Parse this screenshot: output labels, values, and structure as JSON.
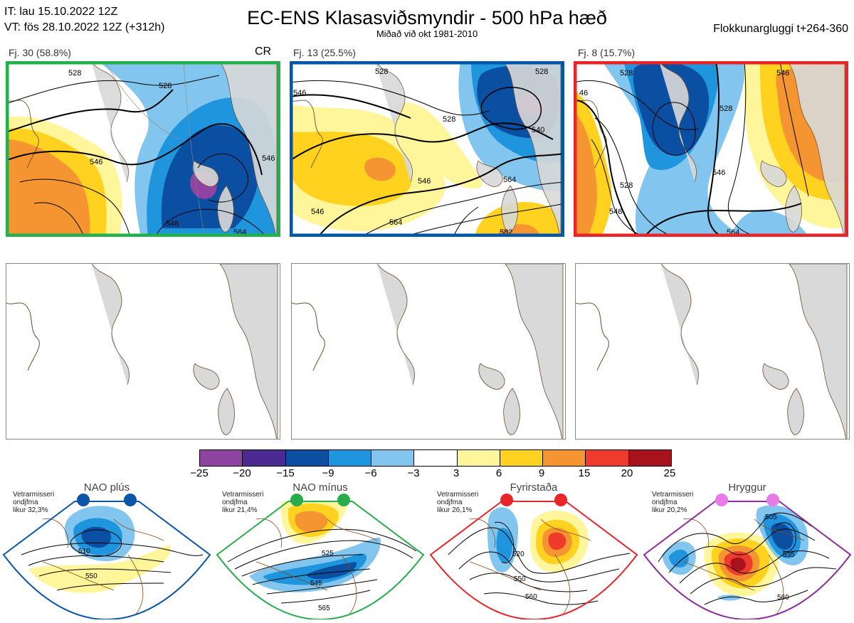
{
  "header": {
    "init_line": "IT: lau 15.10.2022 12Z",
    "valid_line": "VT: fös 28.10.2022 12Z  (+312h)",
    "title": "EC-ENS Klasasviðsmyndir - 500 hPa hæð",
    "subtitle": "Miðað við okt 1981-2010",
    "window": "Flokkunargluggi t+264-360"
  },
  "clusters": [
    {
      "label": "Fj. 30 (58.8%)",
      "border_color": "#22b14c",
      "tag": "CR",
      "contour_labels": [
        "528",
        "546",
        "546",
        "546",
        "564",
        "528"
      ]
    },
    {
      "label": "Fj. 13 (25.5%)",
      "border_color": "#0057a8",
      "tag": "",
      "contour_labels": [
        "528",
        "546",
        "546",
        "564",
        "528",
        "540",
        "564",
        "546",
        "582",
        "528"
      ]
    },
    {
      "label": "Fj. 8 (15.7%)",
      "border_color": "#e8262a",
      "tag": "",
      "contour_labels": [
        "528",
        "46",
        "546",
        "528",
        "528",
        "546",
        "546",
        "564"
      ]
    }
  ],
  "colorbar": {
    "ticks": [
      "−25",
      "−20",
      "−15",
      "−9",
      "−6",
      "−3",
      "3",
      "6",
      "9",
      "15",
      "20",
      "25"
    ],
    "colors": [
      "#8e44a0",
      "#4b2a91",
      "#0b4fa3",
      "#1f95de",
      "#82c6ef",
      "#ffffff",
      "#fff59a",
      "#ffd21f",
      "#f59532",
      "#ee3b2b",
      "#a7121d"
    ]
  },
  "regimes": [
    {
      "name": "NAO plús",
      "info": [
        "Vetrarmisseri",
        "ondjfma",
        "likur 32,3%"
      ],
      "color": "#0b56a8",
      "contour_labels": [
        "510",
        "550"
      ]
    },
    {
      "name": "NAO mínus",
      "info": [
        "Vetrarmisseri",
        "ondjfma",
        "likur 21,4%"
      ],
      "color": "#28ad4c",
      "contour_labels": [
        "525",
        "545",
        "565"
      ]
    },
    {
      "name": "Fyrirstaða",
      "info": [
        "Vetrarmisseri",
        "ondjfma",
        "likur 26,1%"
      ],
      "color": "#e8262a",
      "contour_labels": [
        "520",
        "550",
        "560"
      ]
    },
    {
      "name": "Hryggur",
      "info": [
        "Vetrarmisseri",
        "ondjfma",
        "likur 20,2%"
      ],
      "color": "#8a2f99",
      "contour_labels": [
        "505",
        "535",
        "560"
      ]
    }
  ]
}
